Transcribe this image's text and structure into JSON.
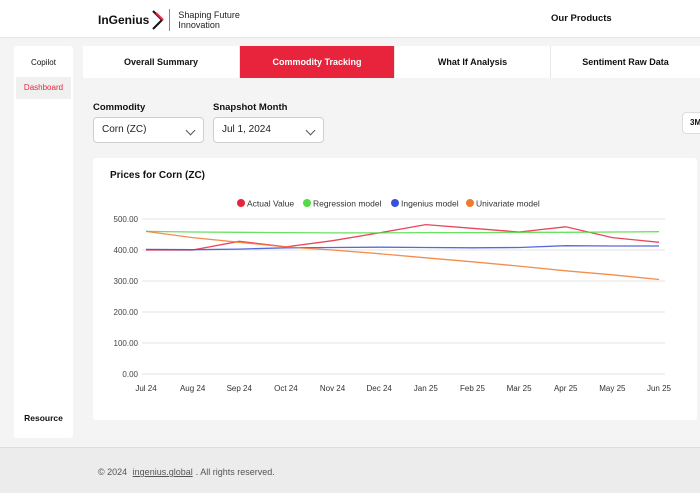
{
  "header": {
    "brand": "InGenius",
    "tagline": "Shaping Future Innovation",
    "nav_label": "Our Products"
  },
  "sidebar": {
    "items": [
      {
        "label": "Copilot"
      },
      {
        "label": "Dashboard"
      }
    ],
    "bottom_label": "Resource"
  },
  "tabs": [
    {
      "label": "Overall Summary"
    },
    {
      "label": "Commodity Tracking"
    },
    {
      "label": "What If Analysis"
    },
    {
      "label": "Sentiment Raw Data"
    }
  ],
  "filters": {
    "commodity_label": "Commodity",
    "commodity_value": "Corn (ZC)",
    "month_label": "Snapshot Month",
    "month_value": "Jul 1, 2024",
    "range_button": "3M"
  },
  "colors": {
    "accent": "#e8243c",
    "actual": "#e8243c",
    "regression": "#4fdc45",
    "ingenius": "#3b4fd8",
    "univariate": "#f07a30"
  },
  "chart_data": {
    "type": "line",
    "title": "Prices for Corn (ZC)",
    "xlabel": "",
    "ylabel": "",
    "ylim": [
      0,
      500
    ],
    "yticks": [
      "500.00",
      "400.00",
      "300.00",
      "200.00",
      "100.00",
      "0.00"
    ],
    "categories": [
      "Jul 24",
      "Aug 24",
      "Sep 24",
      "Oct 24",
      "Nov 24",
      "Dec 24",
      "Jan 25",
      "Feb 25",
      "Mar 25",
      "Apr 25",
      "May 25",
      "Jun 25"
    ],
    "series": [
      {
        "name": "Actual Value",
        "color": "#e8243c",
        "values": [
          400,
          400,
          428,
          410,
          430,
          455,
          482,
          470,
          458,
          475,
          440,
          425
        ]
      },
      {
        "name": "Regression model",
        "color": "#4fdc45",
        "values": [
          460,
          458,
          457,
          456,
          455,
          455,
          456,
          456,
          457,
          457,
          458,
          459
        ]
      },
      {
        "name": "Ingenius model",
        "color": "#3b4fd8",
        "values": [
          402,
          401,
          403,
          407,
          408,
          409,
          408,
          407,
          408,
          414,
          413,
          413
        ]
      },
      {
        "name": "Univariate model",
        "color": "#f07a30",
        "values": [
          460,
          440,
          425,
          410,
          400,
          388,
          375,
          362,
          348,
          333,
          320,
          305
        ]
      }
    ]
  },
  "footer": {
    "copyright_prefix": "© 2024",
    "link": "ingenius.global",
    "copyright_suffix": ". All rights reserved."
  }
}
